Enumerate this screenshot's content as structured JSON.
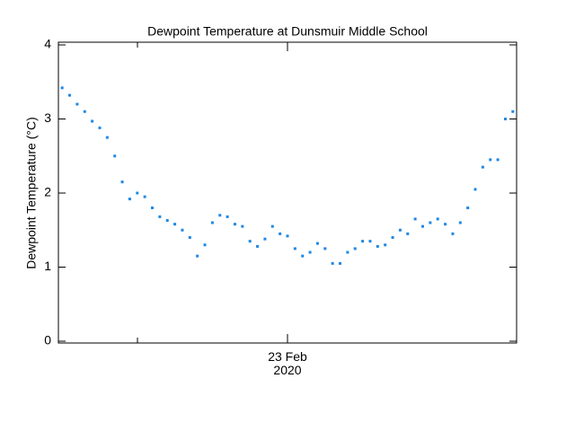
{
  "chart_data": {
    "type": "scatter",
    "title": "Dewpoint Temperature at Dunsmuir Middle School",
    "y_label": "Dewpoint Temperature (°C)",
    "categories": [
      null,
      null,
      null,
      null,
      null,
      null,
      null,
      null,
      null,
      null,
      null,
      null,
      null,
      null,
      null,
      null,
      null,
      null,
      null,
      null,
      null,
      null,
      null,
      null,
      null,
      null,
      null,
      null,
      null,
      null,
      "23 Feb\n2020",
      null,
      null,
      null,
      null,
      null,
      null,
      null,
      null,
      null,
      null,
      null,
      null,
      null,
      null,
      null,
      null,
      null,
      null,
      null,
      null,
      null,
      null,
      null,
      null,
      null,
      null,
      null,
      null,
      null,
      null
    ],
    "values": [
      3.42,
      3.32,
      3.2,
      3.1,
      2.97,
      2.88,
      2.75,
      2.5,
      2.15,
      1.92,
      2.0,
      1.95,
      1.8,
      1.68,
      1.63,
      1.58,
      1.5,
      1.4,
      1.15,
      1.3,
      1.6,
      1.7,
      1.68,
      1.58,
      1.55,
      1.35,
      1.28,
      1.38,
      1.55,
      1.45,
      1.42,
      1.25,
      1.15,
      1.2,
      1.32,
      1.25,
      1.05,
      1.05,
      1.2,
      1.25,
      1.35,
      1.35,
      1.28,
      1.3,
      1.4,
      1.5,
      1.45,
      1.65,
      1.55,
      1.6,
      1.65,
      1.58,
      1.45,
      1.6,
      1.8,
      2.05,
      2.35,
      2.45,
      2.45,
      3.0,
      3.1
    ],
    "color": "#1e88e5",
    "ylim": [
      0,
      4
    ],
    "yticks": [
      0,
      1,
      2,
      3,
      4
    ]
  }
}
